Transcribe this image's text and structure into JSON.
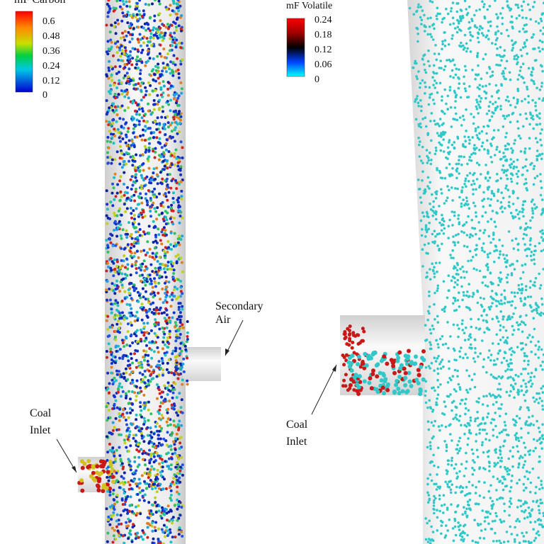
{
  "left_panel": {
    "colorbar": {
      "title": "mF Carbon",
      "ticks": [
        "0.6",
        "0.48",
        "0.36",
        "0.24",
        "0.12",
        "0"
      ]
    },
    "annotations": {
      "secondary_air": [
        "Secondary",
        "Air"
      ],
      "coal_inlet": [
        "Coal",
        "Inlet"
      ]
    }
  },
  "right_panel": {
    "colorbar": {
      "title": "mF Volatile",
      "ticks": [
        "0.24",
        "0.18",
        "0.12",
        "0.06",
        "0"
      ]
    },
    "annotations": {
      "coal_inlet": [
        "Coal",
        "Inlet"
      ]
    }
  }
}
